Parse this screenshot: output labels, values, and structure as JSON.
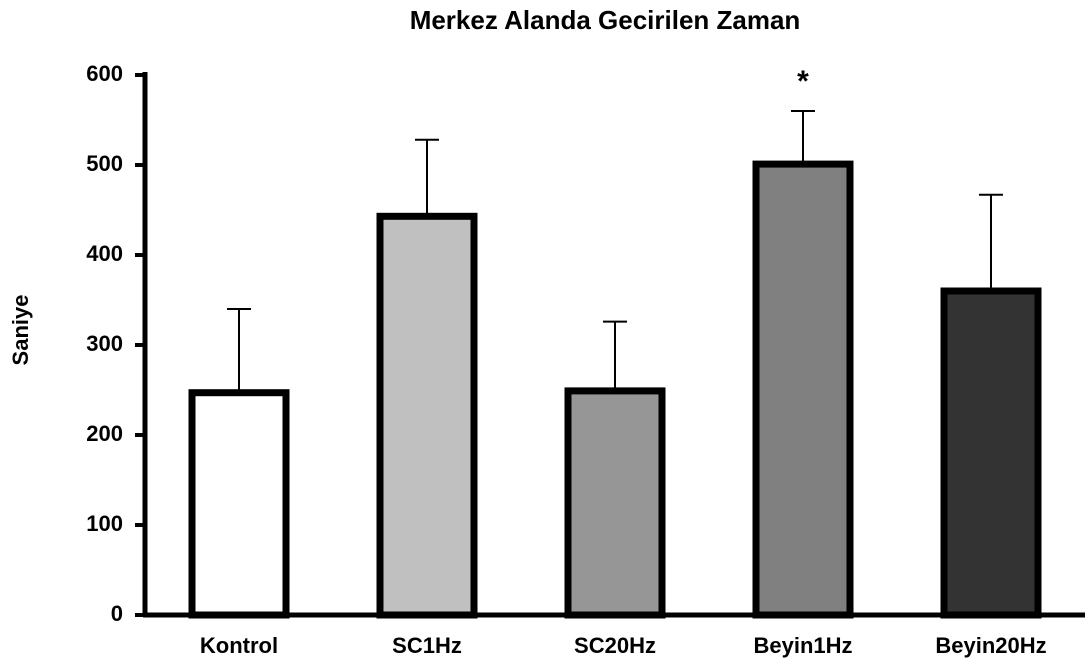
{
  "chart_data": {
    "type": "bar",
    "title": "Merkez Alanda Gecirilen Zaman",
    "ylabel": "Saniye",
    "categories": [
      "Kontrol",
      "SC1Hz",
      "SC20Hz",
      "Beyin1Hz",
      "Beyin20Hz"
    ],
    "values": [
      247,
      443,
      249,
      501,
      360
    ],
    "errors": [
      93,
      85,
      77,
      59,
      107
    ],
    "colors": [
      "#ffffff",
      "#c0c0c0",
      "#969696",
      "#808080",
      "#333333"
    ],
    "ylim": [
      0,
      600
    ],
    "yticks": [
      0,
      100,
      200,
      300,
      400,
      500,
      600
    ],
    "annotations": [
      {
        "text": "*",
        "category": "Beyin1Hz"
      }
    ]
  }
}
